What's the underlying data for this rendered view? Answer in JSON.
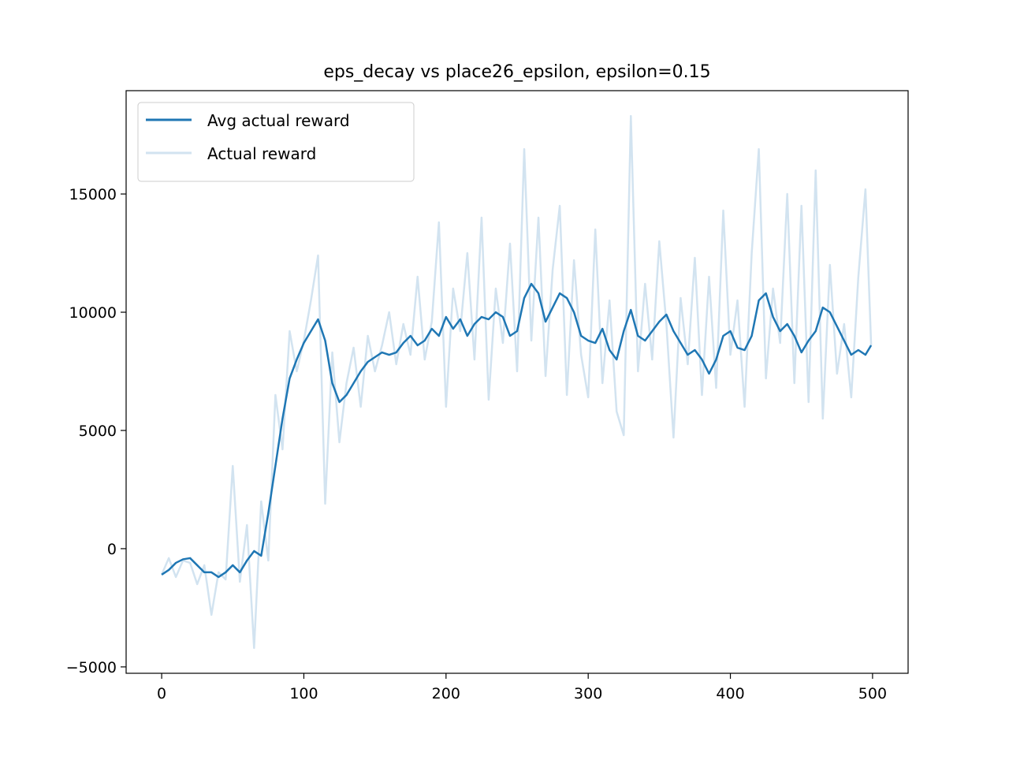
{
  "chart_data": {
    "type": "line",
    "title": "eps_decay vs place26_epsilon, epsilon=0.15",
    "x": [
      0,
      5,
      10,
      15,
      20,
      25,
      30,
      35,
      40,
      45,
      50,
      55,
      60,
      65,
      70,
      75,
      80,
      85,
      90,
      95,
      100,
      105,
      110,
      115,
      120,
      125,
      130,
      135,
      140,
      145,
      150,
      155,
      160,
      165,
      170,
      175,
      180,
      185,
      190,
      195,
      200,
      205,
      210,
      215,
      220,
      225,
      230,
      235,
      240,
      245,
      250,
      255,
      260,
      265,
      270,
      275,
      280,
      285,
      290,
      295,
      300,
      305,
      310,
      315,
      320,
      325,
      330,
      335,
      340,
      345,
      350,
      355,
      360,
      365,
      370,
      375,
      380,
      385,
      390,
      395,
      400,
      405,
      410,
      415,
      420,
      425,
      430,
      435,
      440,
      445,
      450,
      455,
      460,
      465,
      470,
      475,
      480,
      485,
      490,
      495,
      499
    ],
    "series": [
      {
        "name": "Avg actual reward",
        "color": "#1f77b4",
        "values": [
          -1100,
          -900,
          -600,
          -450,
          -400,
          -700,
          -1000,
          -1000,
          -1200,
          -1000,
          -700,
          -1000,
          -500,
          -100,
          -300,
          1500,
          3500,
          5500,
          7200,
          8000,
          8700,
          9200,
          9700,
          8800,
          7000,
          6200,
          6500,
          7000,
          7500,
          7900,
          8100,
          8300,
          8200,
          8300,
          8700,
          9000,
          8600,
          8800,
          9300,
          9000,
          9800,
          9300,
          9700,
          9000,
          9500,
          9800,
          9700,
          10000,
          9800,
          9000,
          9200,
          10600,
          11200,
          10800,
          9600,
          10200,
          10800,
          10600,
          10000,
          9000,
          8800,
          8700,
          9300,
          8400,
          8000,
          9200,
          10100,
          9000,
          8800,
          9200,
          9600,
          9900,
          9200,
          8700,
          8200,
          8400,
          8000,
          7400,
          8000,
          9000,
          9200,
          8500,
          8400,
          9000,
          10500,
          10800,
          9800,
          9200,
          9500,
          9000,
          8300,
          8800,
          9200,
          10200,
          10000,
          9400,
          8800,
          8200,
          8400,
          8200,
          8600
        ]
      },
      {
        "name": "Actual reward",
        "color": "#d2e3f0",
        "values": [
          -1100,
          -400,
          -1200,
          -500,
          -600,
          -1500,
          -700,
          -2800,
          -1000,
          -1300,
          3500,
          -1400,
          1000,
          -4200,
          2000,
          -500,
          6500,
          4200,
          9200,
          7500,
          8800,
          10500,
          12400,
          1900,
          8300,
          4500,
          7000,
          8500,
          6000,
          9000,
          7500,
          8600,
          10000,
          7800,
          9500,
          8200,
          11500,
          8000,
          9600,
          13800,
          6000,
          11000,
          9200,
          12500,
          8000,
          14000,
          6300,
          11000,
          8700,
          12900,
          7500,
          16900,
          8800,
          14000,
          7300,
          11800,
          14500,
          6500,
          12200,
          8200,
          6400,
          13500,
          7000,
          10500,
          5800,
          4800,
          18300,
          7500,
          11200,
          8000,
          13000,
          9500,
          4700,
          10600,
          7800,
          12300,
          6500,
          11500,
          6800,
          14300,
          8200,
          10500,
          6000,
          12500,
          16900,
          7200,
          11000,
          8700,
          15000,
          7000,
          14500,
          6200,
          16000,
          5500,
          12000,
          7400,
          9500,
          6400,
          11500,
          15200,
          8600
        ]
      }
    ],
    "xlim": [
      -25,
      525
    ],
    "ylim": [
      -5270,
      19370
    ],
    "xticks": [
      0,
      100,
      200,
      300,
      400,
      500
    ],
    "yticks": [
      {
        "value": -5000,
        "label": "−5000"
      },
      0,
      5000,
      10000,
      15000
    ],
    "legend": "upper left"
  }
}
